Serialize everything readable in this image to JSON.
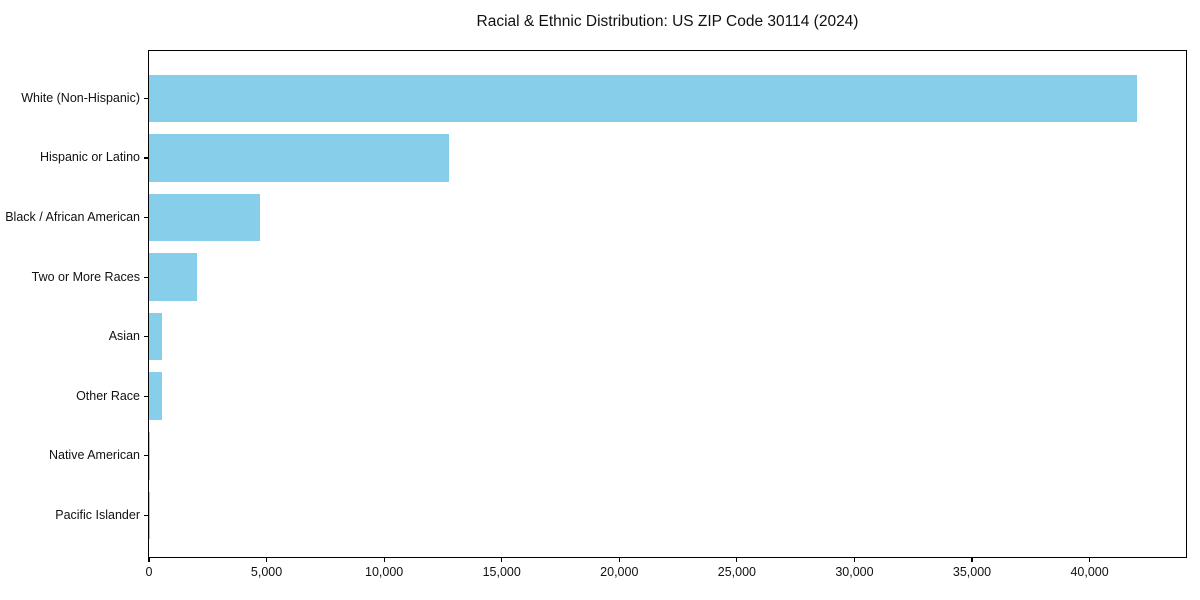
{
  "title": "Racial & Ethnic Distribution: US ZIP Code 30114 (2024)",
  "colors": {
    "bar": "#87CEEB",
    "spine": "#000000",
    "text": "#111111",
    "background": "#ffffff"
  },
  "chart_data": {
    "type": "bar",
    "orientation": "horizontal",
    "title": "Racial & Ethnic Distribution: US ZIP Code 30114 (2024)",
    "categories": [
      "White (Non-Hispanic)",
      "Hispanic or Latino",
      "Black / African American",
      "Two or More Races",
      "Asian",
      "Other Race",
      "Native American",
      "Pacific Islander"
    ],
    "values": [
      42000,
      12750,
      4720,
      2040,
      560,
      550,
      60,
      20
    ],
    "bar_color": "#87CEEB",
    "xlabel": "",
    "ylabel": "",
    "xlim": [
      0,
      44100
    ],
    "x_ticks": [
      0,
      5000,
      10000,
      15000,
      20000,
      25000,
      30000,
      35000,
      40000
    ],
    "x_tick_labels": [
      "0",
      "5,000",
      "10,000",
      "15,000",
      "20,000",
      "25,000",
      "30,000",
      "35,000",
      "40,000"
    ],
    "grid": false,
    "legend": "none"
  }
}
